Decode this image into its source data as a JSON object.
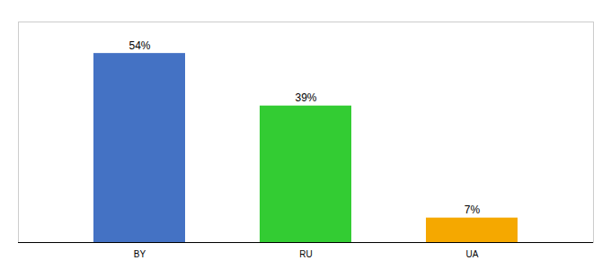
{
  "chart_data": {
    "type": "bar",
    "categories": [
      "BY",
      "RU",
      "UA"
    ],
    "values": [
      54,
      39,
      7
    ],
    "colors": [
      "#4472c4",
      "#33cc33",
      "#f5a800"
    ],
    "value_labels": [
      "54%",
      "39%",
      "7%"
    ],
    "data_labels": true,
    "ylim": [
      0,
      63
    ],
    "tick_labels": "x"
  }
}
